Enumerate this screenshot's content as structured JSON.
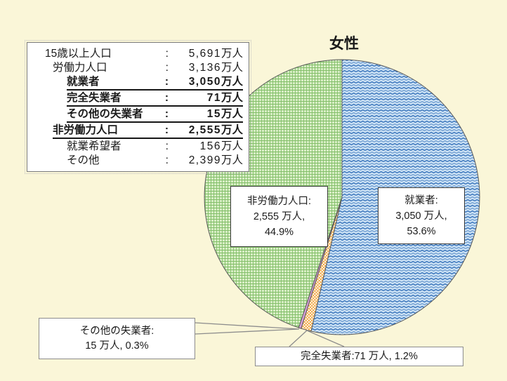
{
  "title": "女性",
  "colors": {
    "background": "#faf6d8",
    "text": "#1a1a1a",
    "slice_border": "#595959",
    "leader_line": "#8c8c8c"
  },
  "info_box": {
    "unit": "万人",
    "rows": [
      {
        "label": "15歳以上人口",
        "num": "5,691",
        "unit": "万人",
        "indent": 0,
        "emphasis": false
      },
      {
        "label": "労働力人口",
        "num": "3,136",
        "unit": "万人",
        "indent": 1,
        "emphasis": false
      },
      {
        "label": "就業者",
        "num": "3,050",
        "unit": "万人",
        "indent": 2,
        "emphasis": true
      },
      {
        "label": "完全失業者",
        "num": "71",
        "unit": "万人",
        "indent": 2,
        "emphasis": true
      },
      {
        "label": "その他の失業者",
        "num": "15",
        "unit": "万人",
        "indent": 2,
        "emphasis": true
      },
      {
        "label": "非労働力人口",
        "num": "2,555",
        "unit": "万人",
        "indent": 1,
        "emphasis": true
      },
      {
        "label": "就業希望者",
        "num": "156",
        "unit": "万人",
        "indent": 2,
        "emphasis": false
      },
      {
        "label": "その他",
        "num": "2,399",
        "unit": "万人",
        "indent": 2,
        "emphasis": false
      }
    ]
  },
  "chart_data": {
    "type": "pie",
    "title": "女性",
    "unit": "万人",
    "start_angle_deg": 0,
    "direction": "clockwise",
    "legend_position": "none",
    "slices": [
      {
        "key": "employed",
        "name": "就業者",
        "value": 3050,
        "percent": 53.6,
        "pattern": "wave",
        "colors": {
          "bg": "#cfe4f6",
          "fg": "#3e78bd"
        }
      },
      {
        "key": "unemployed",
        "name": "完全失業者",
        "value": 71,
        "percent": 1.2,
        "pattern": "checker",
        "colors": {
          "bg": "#fffdf5",
          "fg": "#f0a139"
        }
      },
      {
        "key": "other-unemployed",
        "name": "その他の失業者",
        "value": 15,
        "percent": 0.3,
        "pattern": "solid",
        "colors": {
          "bg": "#d9a0d9",
          "fg": "#d9a0d9"
        }
      },
      {
        "key": "non-labor",
        "name": "非労働力人口",
        "value": 2555,
        "percent": 44.9,
        "pattern": "grid",
        "colors": {
          "bg": "#d8eec5",
          "fg": "#74b759"
        }
      }
    ]
  },
  "labels": {
    "employed": {
      "line1": "就業者:",
      "line2": "3,050 万人,",
      "line3": "53.6%"
    },
    "nonlabor": {
      "line1": "非労働力人口:",
      "line2": "2,555 万人,",
      "line3": "44.9%"
    },
    "other": {
      "line1": "その他の失業者:",
      "line2": "15 万人, 0.3%"
    },
    "unemployed": {
      "line1": "完全失業者:71 万人, 1.2%"
    }
  }
}
